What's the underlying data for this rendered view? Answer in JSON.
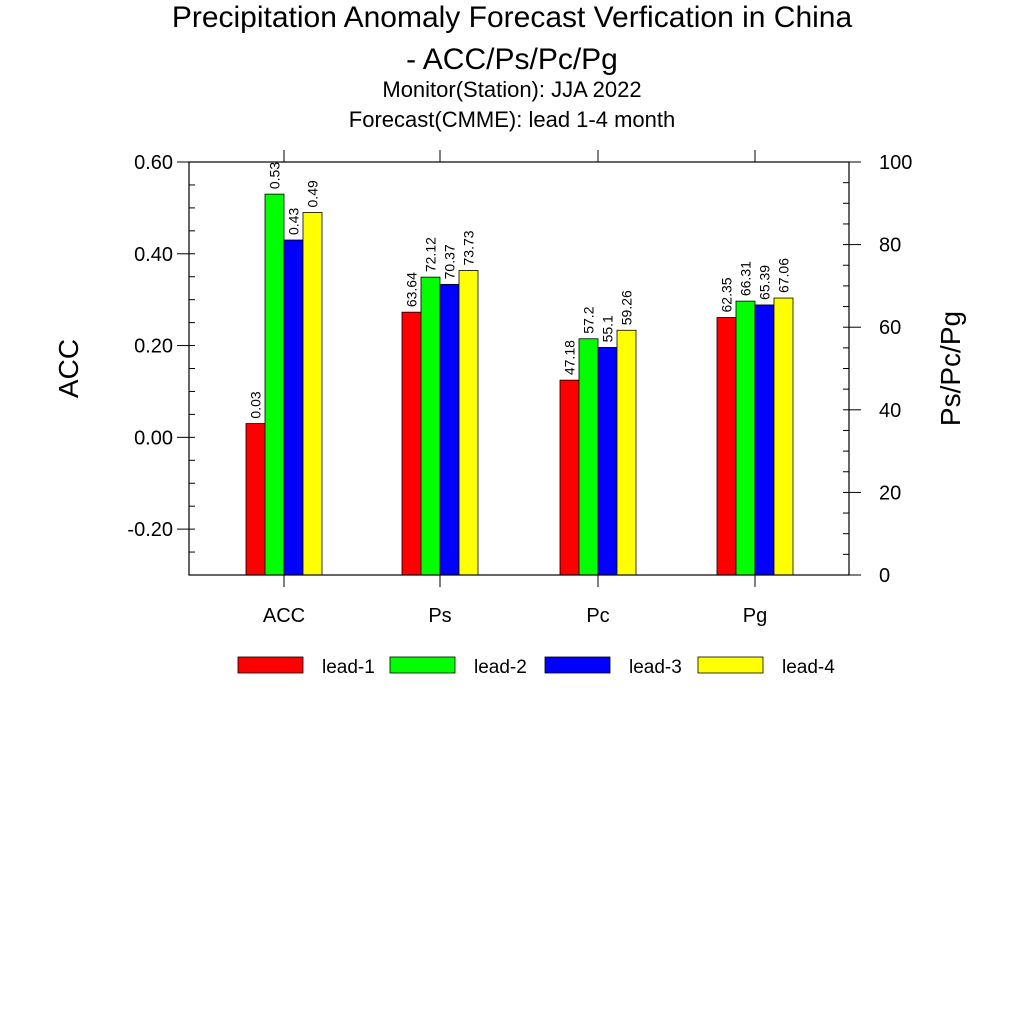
{
  "title_line1": "Precipitation Anomaly Forecast Verfication in China",
  "title_line2": "- ACC/Ps/Pc/Pg",
  "subtitle_line1": "Monitor(Station): JJA 2022",
  "subtitle_line2": "Forecast(CMME): lead 1-4 month",
  "chart_data": {
    "type": "bar",
    "categories": [
      "ACC",
      "Ps",
      "Pc",
      "Pg"
    ],
    "series": [
      {
        "name": "lead-1",
        "color": "#ff0000",
        "values": [
          0.03,
          63.64,
          47.18,
          62.35
        ],
        "labels": [
          "0.03",
          "63.64",
          "47.18",
          "62.35"
        ]
      },
      {
        "name": "lead-2",
        "color": "#00ff00",
        "values": [
          0.53,
          72.12,
          57.2,
          66.31
        ],
        "labels": [
          "0.53",
          "72.12",
          "57.2",
          "66.31"
        ]
      },
      {
        "name": "lead-3",
        "color": "#0000ff",
        "values": [
          0.43,
          70.37,
          55.1,
          65.39
        ],
        "labels": [
          "0.43",
          "70.37",
          "55.1",
          "65.39"
        ]
      },
      {
        "name": "lead-4",
        "color": "#ffff00",
        "values": [
          0.49,
          73.73,
          59.26,
          67.06
        ],
        "labels": [
          "0.49",
          "73.73",
          "59.26",
          "67.06"
        ]
      }
    ],
    "left_axis": {
      "label": "ACC",
      "range": [
        -0.3,
        0.6
      ],
      "ticks": [
        -0.2,
        0.0,
        0.2,
        0.4,
        0.6
      ],
      "tick_labels": [
        "-0.20",
        "0.00",
        "0.20",
        "0.40",
        "0.60"
      ],
      "applies_to": [
        "ACC"
      ]
    },
    "right_axis": {
      "label": "Ps/Pc/Pg",
      "range": [
        0,
        100
      ],
      "ticks": [
        0,
        20,
        40,
        60,
        80,
        100
      ],
      "tick_labels": [
        "0",
        "20",
        "40",
        "60",
        "80",
        "100"
      ],
      "applies_to": [
        "Ps",
        "Pc",
        "Pg"
      ]
    },
    "grid": false,
    "legend_position": "bottom"
  }
}
